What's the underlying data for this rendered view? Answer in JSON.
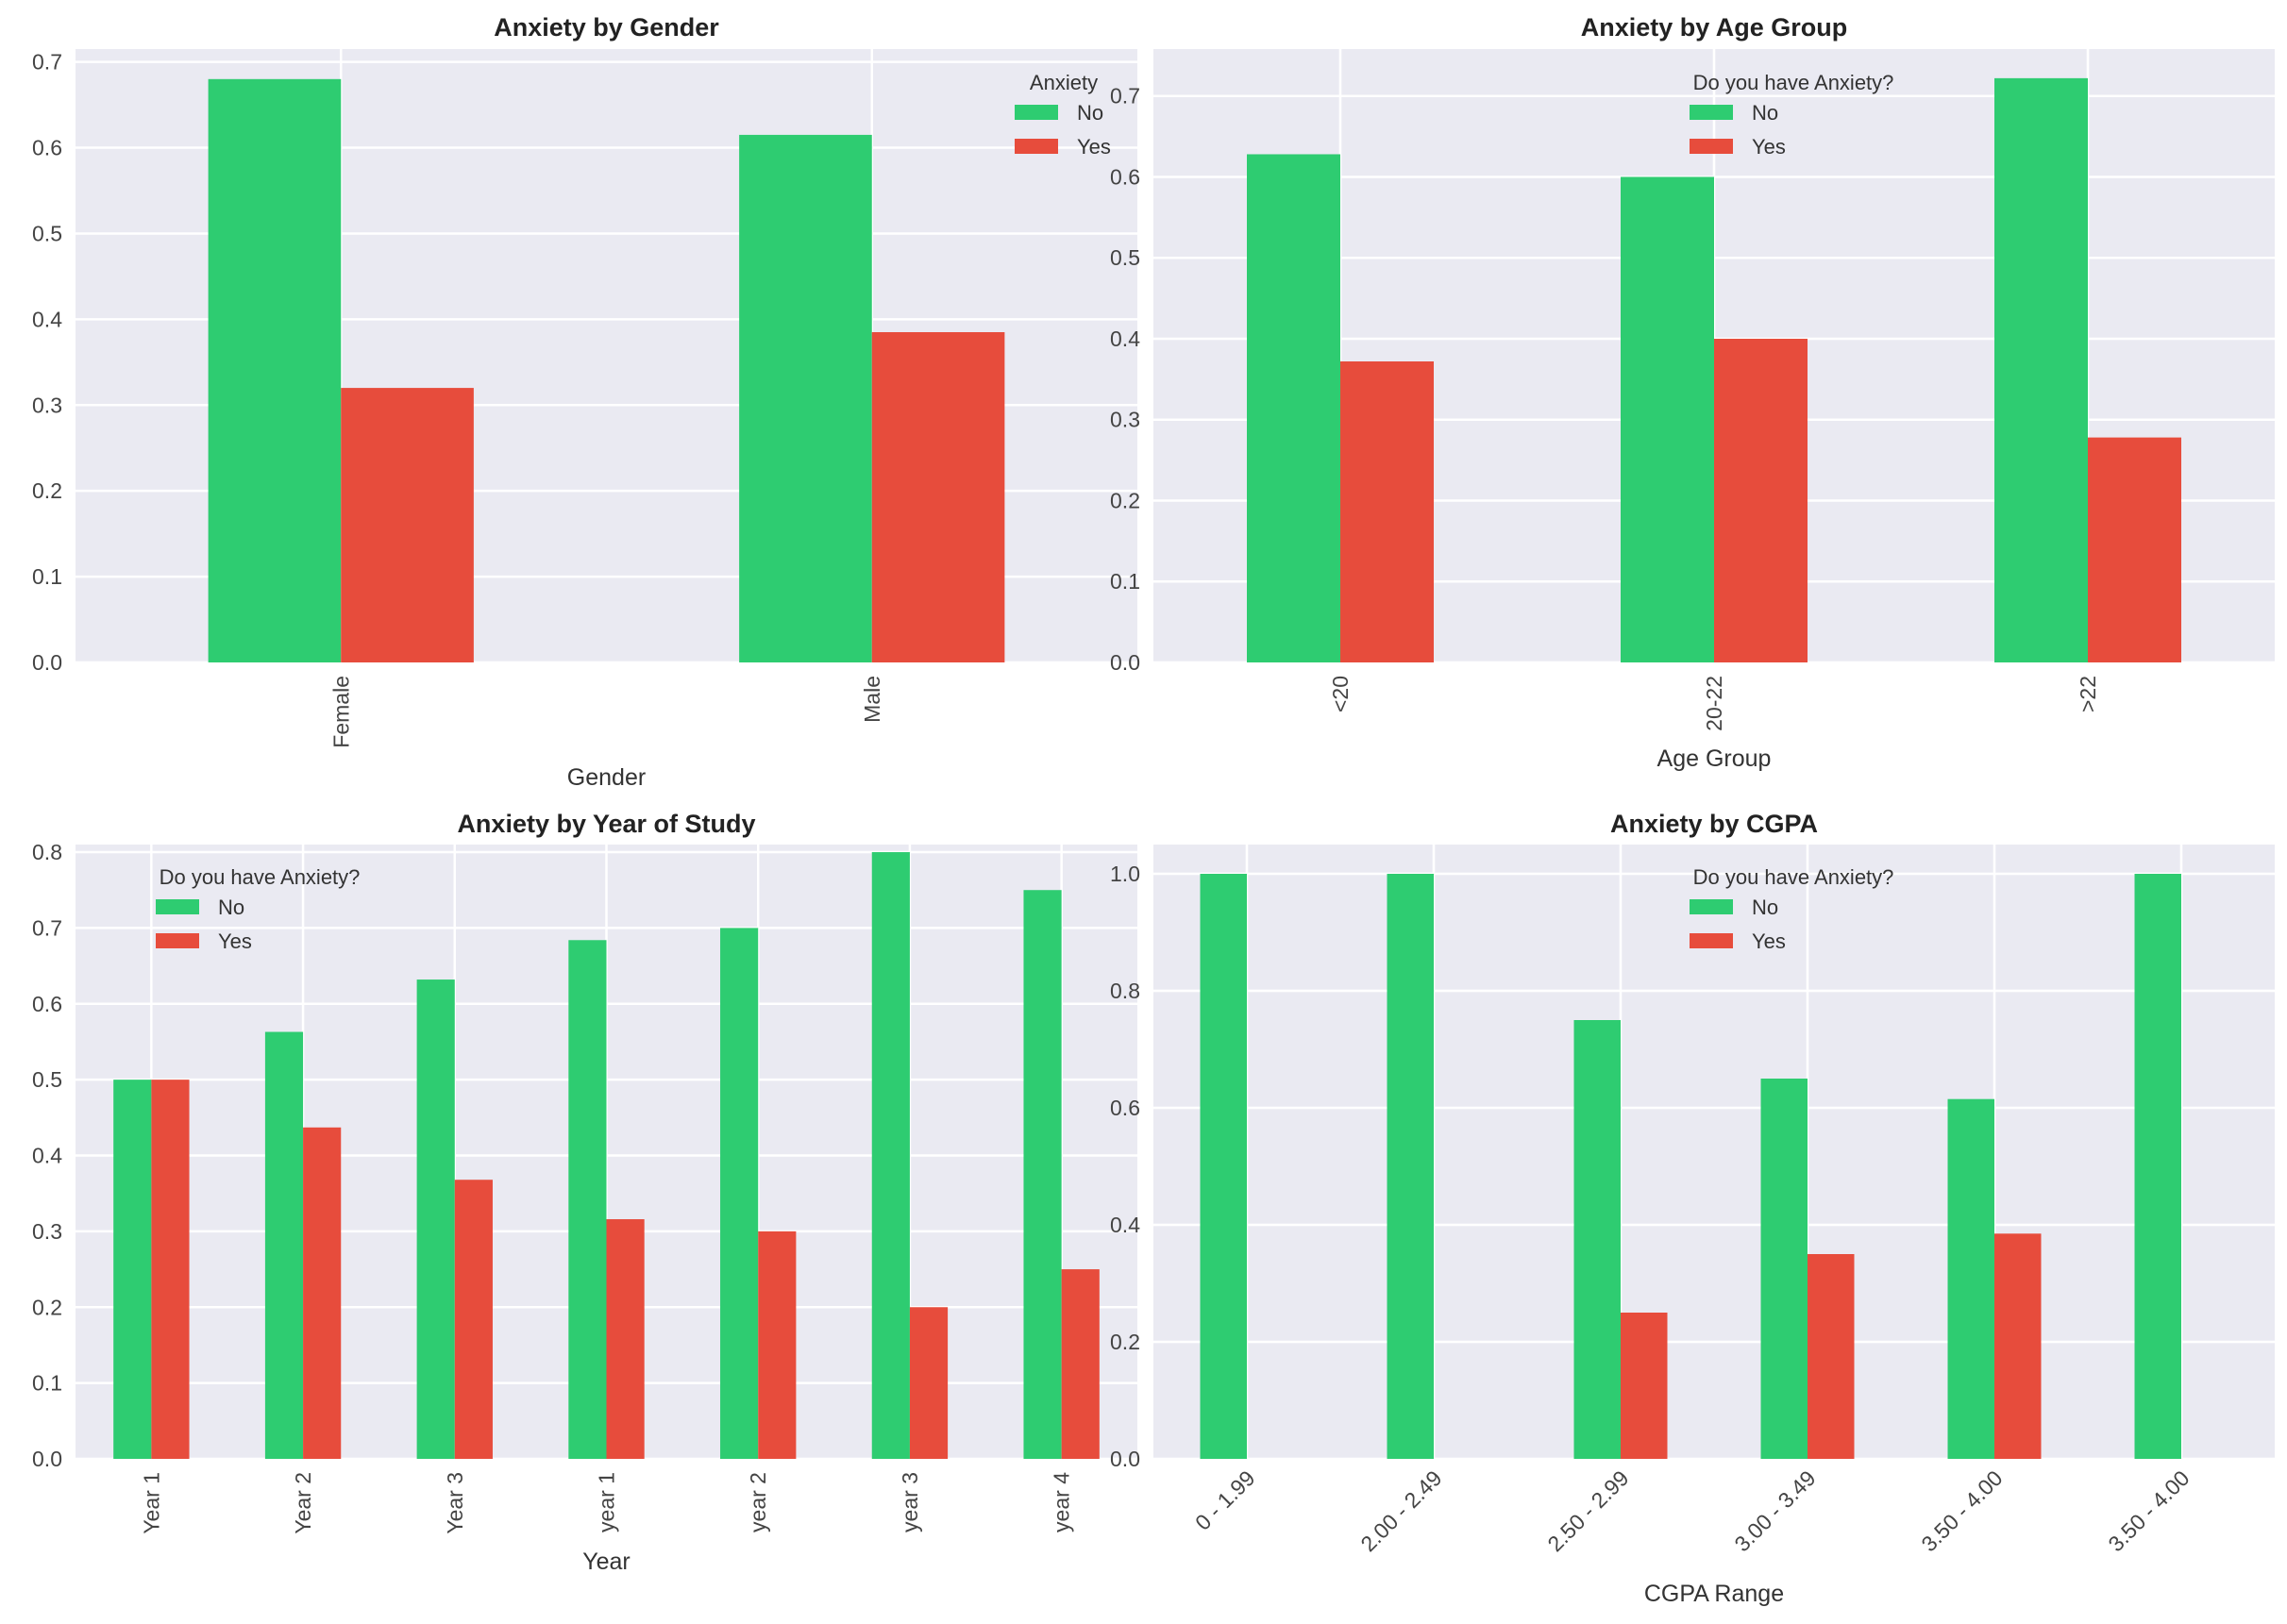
{
  "colors": {
    "No": "#2ecc71",
    "Yes": "#e74c3c"
  },
  "chart_data": [
    {
      "type": "bar",
      "title": "Anxiety by Gender",
      "xlabel": "Gender",
      "ylabel": "",
      "categories": [
        "Female",
        "Male"
      ],
      "series": [
        {
          "name": "No",
          "values": [
            0.68,
            0.615
          ]
        },
        {
          "name": "Yes",
          "values": [
            0.32,
            0.385
          ]
        }
      ],
      "ylim": [
        0,
        0.715
      ],
      "yticks": [
        "0.0",
        "0.1",
        "0.2",
        "0.3",
        "0.4",
        "0.5",
        "0.6",
        "0.7"
      ],
      "xtick_rotation": -90,
      "legend": {
        "title": "Anxiety",
        "position": "top-right",
        "labels": [
          "No",
          "Yes"
        ]
      }
    },
    {
      "type": "bar",
      "title": "Anxiety by Age Group",
      "xlabel": "Age Group",
      "ylabel": "",
      "categories": [
        "<20",
        "20-22",
        ">22"
      ],
      "series": [
        {
          "name": "No",
          "values": [
            0.628,
            0.6,
            0.722
          ]
        },
        {
          "name": "Yes",
          "values": [
            0.372,
            0.4,
            0.278
          ]
        }
      ],
      "ylim": [
        0,
        0.758
      ],
      "yticks": [
        "0.0",
        "0.1",
        "0.2",
        "0.3",
        "0.4",
        "0.5",
        "0.6",
        "0.7"
      ],
      "xtick_rotation": -90,
      "legend": {
        "title": "Do you have Anxiety?",
        "position": "top-center",
        "labels": [
          "No",
          "Yes"
        ]
      }
    },
    {
      "type": "bar",
      "title": "Anxiety by Year of Study",
      "xlabel": "Year",
      "ylabel": "",
      "categories": [
        "Year 1",
        "Year 2",
        "Year 3",
        "year 1",
        "year 2",
        "year 3",
        "year 4"
      ],
      "series": [
        {
          "name": "No",
          "values": [
            0.5,
            0.563,
            0.632,
            0.684,
            0.7,
            0.8,
            0.75
          ]
        },
        {
          "name": "Yes",
          "values": [
            0.5,
            0.437,
            0.368,
            0.316,
            0.3,
            0.2,
            0.25
          ]
        }
      ],
      "ylim": [
        0,
        0.81
      ],
      "yticks": [
        "0.0",
        "0.1",
        "0.2",
        "0.3",
        "0.4",
        "0.5",
        "0.6",
        "0.7",
        "0.8"
      ],
      "xtick_rotation": -90,
      "legend": {
        "title": "Do you have Anxiety?",
        "position": "top-left",
        "labels": [
          "No",
          "Yes"
        ]
      }
    },
    {
      "type": "bar",
      "title": "Anxiety by CGPA",
      "xlabel": "CGPA Range",
      "ylabel": "",
      "categories": [
        "0 - 1.99",
        "2.00 - 2.49",
        "2.50 - 2.99",
        "3.00 - 3.49",
        "3.50 - 4.00",
        "3.50 - 4.00"
      ],
      "series": [
        {
          "name": "No",
          "values": [
            1.0,
            1.0,
            0.75,
            0.65,
            0.615,
            1.0
          ]
        },
        {
          "name": "Yes",
          "values": [
            0.0,
            0.0,
            0.25,
            0.35,
            0.385,
            0.0
          ]
        }
      ],
      "ylim": [
        0,
        1.05
      ],
      "yticks": [
        "0.0",
        "0.2",
        "0.4",
        "0.6",
        "0.8",
        "1.0"
      ],
      "xtick_rotation": -45,
      "legend": {
        "title": "Do you have Anxiety?",
        "position": "top-center",
        "labels": [
          "No",
          "Yes"
        ]
      }
    }
  ]
}
